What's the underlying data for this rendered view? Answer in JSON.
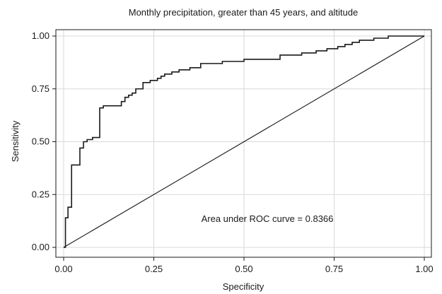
{
  "chart_data": {
    "type": "line",
    "title": "Monthly precipitation, greater than 45 years, and altitude",
    "xlabel": "Specificity",
    "ylabel": "Sensitivity",
    "xlim": [
      0,
      1
    ],
    "ylim": [
      0,
      1
    ],
    "x_ticks": [
      "0.00",
      "0.25",
      "0.50",
      "0.75",
      "1.00"
    ],
    "y_ticks": [
      "0.00",
      "0.25",
      "0.50",
      "0.75",
      "1.00"
    ],
    "grid": true,
    "annotation": "Area under ROC curve = 0.8366",
    "series": [
      {
        "step": true,
        "x": [
          0,
          0.005,
          0.012,
          0.022,
          0.03,
          0.045,
          0.055,
          0.065,
          0.08,
          0.1,
          0.11,
          0.15,
          0.16,
          0.17,
          0.18,
          0.19,
          0.2,
          0.22,
          0.24,
          0.26,
          0.27,
          0.28,
          0.3,
          0.32,
          0.35,
          0.38,
          0.41,
          0.44,
          0.47,
          0.5,
          0.55,
          0.6,
          0.66,
          0.7,
          0.73,
          0.76,
          0.78,
          0.8,
          0.82,
          0.84,
          0.86,
          0.9,
          0.95,
          1.0
        ],
        "y": [
          0,
          0.14,
          0.19,
          0.39,
          0.39,
          0.47,
          0.5,
          0.51,
          0.52,
          0.66,
          0.67,
          0.67,
          0.69,
          0.71,
          0.72,
          0.73,
          0.75,
          0.78,
          0.79,
          0.8,
          0.81,
          0.82,
          0.83,
          0.84,
          0.85,
          0.87,
          0.87,
          0.88,
          0.88,
          0.89,
          0.89,
          0.91,
          0.92,
          0.93,
          0.94,
          0.95,
          0.96,
          0.97,
          0.98,
          0.98,
          0.99,
          1.0,
          1.0,
          1.0
        ]
      },
      {
        "x": [
          0,
          1
        ],
        "y": [
          0,
          1
        ]
      }
    ]
  }
}
